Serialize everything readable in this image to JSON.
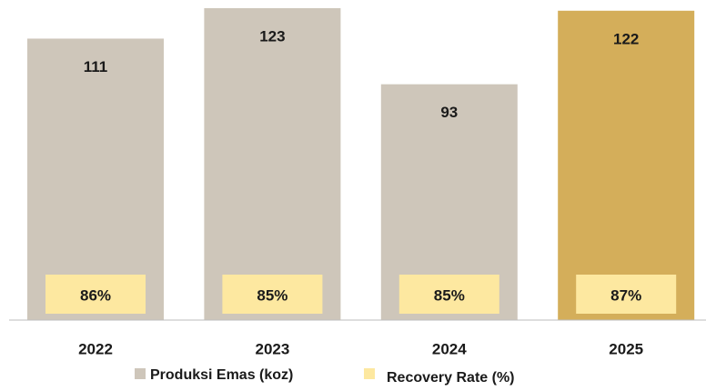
{
  "chart_data": {
    "type": "bar",
    "categories": [
      "2022",
      "2023",
      "2024",
      "2025"
    ],
    "series": [
      {
        "name": "Produksi Emas (koz)",
        "color": "#cec6ba",
        "colors": [
          "#cec6ba",
          "#cec6ba",
          "#cec6ba",
          "#d4ae5a"
        ],
        "values": [
          111,
          123,
          93,
          122
        ]
      },
      {
        "name": "Recovery Rate (%)",
        "color": "#fde8a0",
        "values": [
          86,
          85,
          85,
          87
        ],
        "value_labels": [
          "86%",
          "85%",
          "85%",
          "87%"
        ]
      }
    ]
  }
}
